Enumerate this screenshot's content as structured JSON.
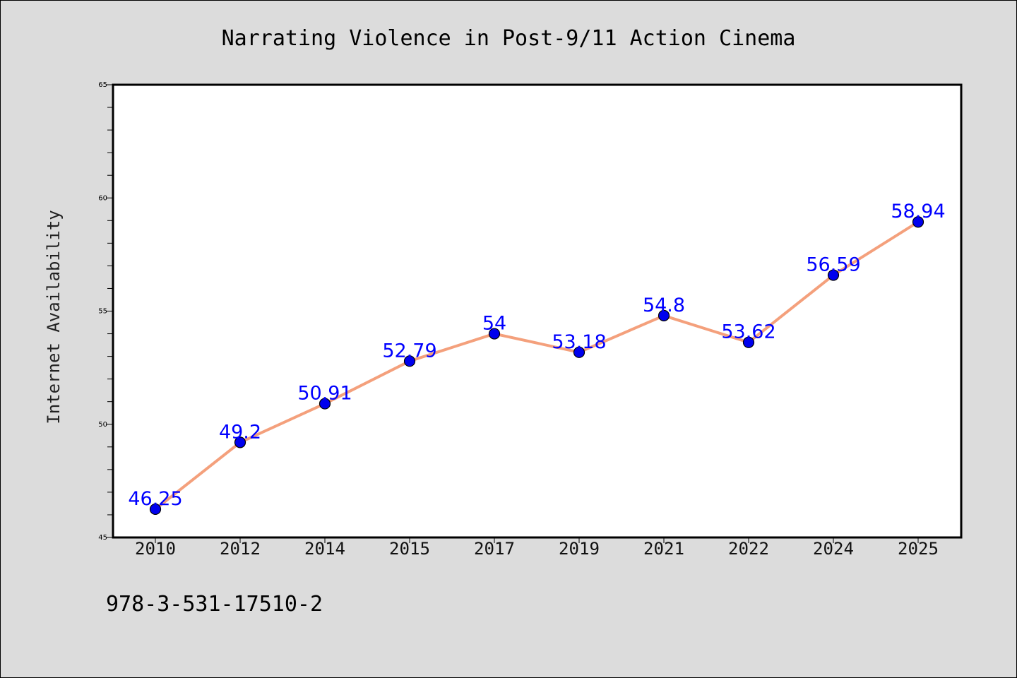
{
  "chart_data": {
    "type": "line",
    "title": "Narrating Violence in Post-9/11 Action Cinema",
    "ylabel": "Internet Availability",
    "xlabel": "",
    "categories": [
      "2010",
      "2012",
      "2014",
      "2015",
      "2017",
      "2019",
      "2021",
      "2022",
      "2024",
      "2025"
    ],
    "series": [
      {
        "values": [
          46.25,
          49.2,
          50.91,
          52.79,
          54,
          53.18,
          54.8,
          53.62,
          56.59,
          58.94
        ],
        "data_labels": [
          "46.25",
          "49.2",
          "50.91",
          "52.79",
          "54",
          "53.18",
          "54.8",
          "53.62",
          "56.59",
          "58.94"
        ],
        "line_color": "#f4a07c",
        "marker_color": "#0000ee",
        "label_color": "#0000ff"
      }
    ],
    "ylim": [
      45,
      65
    ],
    "yticks": [
      45,
      50,
      55,
      60,
      65
    ],
    "grid": false,
    "legend": "none"
  },
  "annotation": "978-3-531-17510-2",
  "colors": {
    "background": "#dcdcdc",
    "plot_background": "#ffffff",
    "axis": "#000000"
  }
}
